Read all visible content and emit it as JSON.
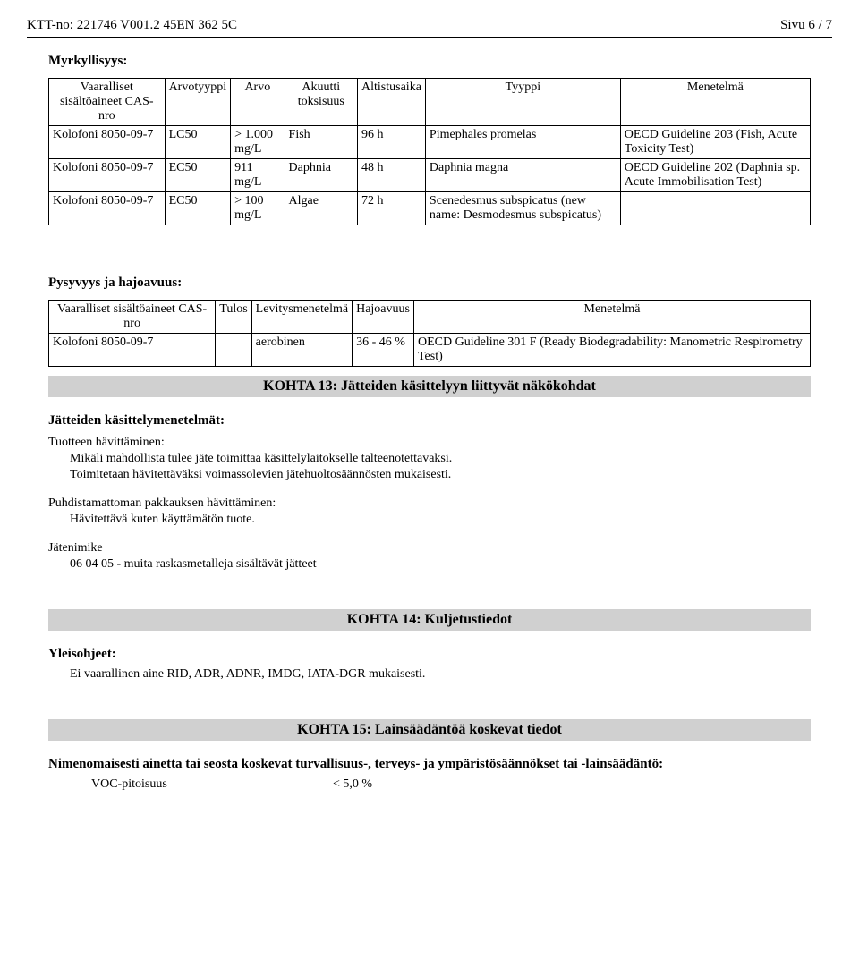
{
  "header": {
    "left": "KTT-no: 221746   V001.2    45EN 362 5C",
    "right": "Sivu 6 / 7"
  },
  "toxicity": {
    "title": "Myrkyllisyys:",
    "columns": [
      "Vaaralliset sisältöaineet\nCAS-nro",
      "Arvotyyppi",
      "Arvo",
      "Akuutti toksisuus",
      "Altistusaika",
      "Tyyppi",
      "Menetelmä"
    ],
    "rows": [
      [
        "Kolofoni\n8050-09-7",
        "LC50",
        "> 1.000 mg/L",
        "Fish",
        "96 h",
        "Pimephales promelas",
        "OECD Guideline 203 (Fish, Acute Toxicity Test)"
      ],
      [
        "Kolofoni\n8050-09-7",
        "EC50",
        "911 mg/L",
        "Daphnia",
        "48 h",
        "Daphnia magna",
        "OECD Guideline 202 (Daphnia sp. Acute Immobilisation Test)"
      ],
      [
        "Kolofoni\n8050-09-7",
        "EC50",
        "> 100 mg/L",
        "Algae",
        "72 h",
        "Scenedesmus subspicatus (new name: Desmodesmus subspicatus)",
        ""
      ]
    ]
  },
  "persistence": {
    "title": "Pysyvyys ja hajoavuus:",
    "columns": [
      "Vaaralliset sisältöaineet\nCAS-nro",
      "Tulos",
      "Levitysmenetelmä",
      "Hajoavuus",
      "Menetelmä"
    ],
    "rows": [
      [
        "Kolofoni\n8050-09-7",
        "",
        "aerobinen",
        "36 - 46 %",
        "OECD Guideline 301 F (Ready Biodegradability: Manometric Respirometry Test)"
      ]
    ]
  },
  "section13": {
    "band": "KOHTA 13: Jätteiden käsittelyyn liittyvät näkökohdat",
    "methods_title": "Jätteiden käsittelymenetelmät:",
    "product_disposal_label": "Tuotteen hävittäminen:",
    "product_disposal_line1": "Mikäli mahdollista tulee jäte toimittaa käsittelylaitokselle talteenotettavaksi.",
    "product_disposal_line2": "Toimitetaan hävitettäväksi voimassolevien jätehuoltosäännösten mukaisesti.",
    "pack_label": "Puhdistamattoman pakkauksen hävittäminen:",
    "pack_line1": "Hävitettävä kuten käyttämätön tuote.",
    "waste_code_label": "Jätenimike",
    "waste_code_line": "06 04 05 - muita raskasmetalleja sisältävät jätteet"
  },
  "section14": {
    "band": "KOHTA 14: Kuljetustiedot",
    "general_label": "Yleisohjeet:",
    "general_line": "Ei vaarallinen aine RID, ADR, ADNR, IMDG, IATA-DGR mukaisesti."
  },
  "section15": {
    "band": "KOHTA 15: Lainsäädäntöä koskevat tiedot",
    "regs_title": "Nimenomaisesti ainetta tai seosta koskevat turvallisuus-, terveys- ja ympäristösäännökset tai -lainsäädäntö:",
    "voc_label": "VOC-pitoisuus",
    "voc_value": "< 5,0 %"
  }
}
